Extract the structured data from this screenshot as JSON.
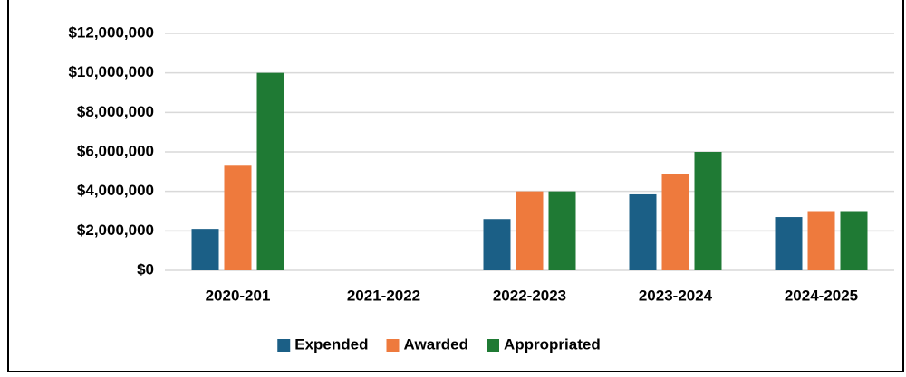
{
  "chart_data": {
    "type": "bar",
    "categories": [
      "2020-201",
      "2021-2022",
      "2022-2023",
      "2023-2024",
      "2024-2025"
    ],
    "series": [
      {
        "name": "Expended",
        "color": "#1b5f86",
        "values": [
          2100000,
          0,
          2600000,
          3850000,
          2700000
        ]
      },
      {
        "name": "Awarded",
        "color": "#ee7a3d",
        "values": [
          5300000,
          0,
          4000000,
          4900000,
          3000000
        ]
      },
      {
        "name": "Appropriated",
        "color": "#1f7a34",
        "values": [
          10000000,
          0,
          4000000,
          6000000,
          3000000
        ]
      }
    ],
    "ylim": [
      0,
      12000000
    ],
    "yticks": [
      {
        "value": 0,
        "label": "$0"
      },
      {
        "value": 2000000,
        "label": "$2,000,000"
      },
      {
        "value": 4000000,
        "label": "$4,000,000"
      },
      {
        "value": 6000000,
        "label": "$6,000,000"
      },
      {
        "value": 8000000,
        "label": "$8,000,000"
      },
      {
        "value": 10000000,
        "label": "$10,000,000"
      },
      {
        "value": 12000000,
        "label": "$12,000,000"
      }
    ],
    "grid": true,
    "legend": "bottom"
  }
}
